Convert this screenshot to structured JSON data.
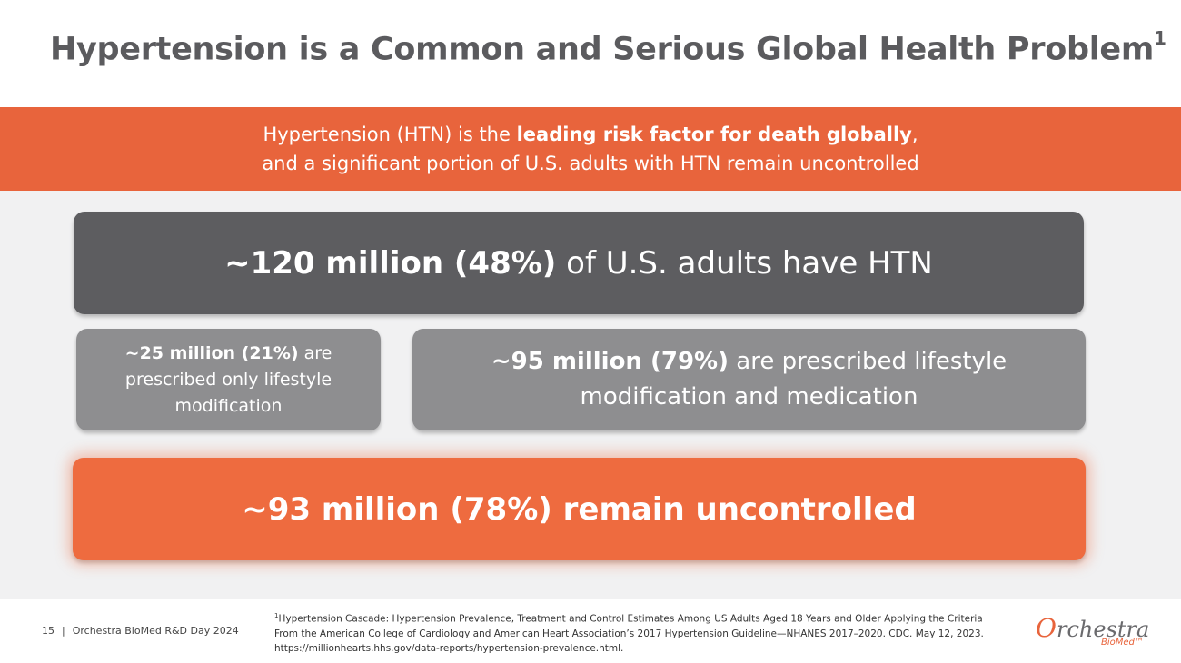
{
  "slide": {
    "title": "Hypertension is a Common and Serious Global Health Problem",
    "title_sup": "1"
  },
  "banner": {
    "line1_pre": "Hypertension (HTN) is the ",
    "line1_bold": "leading risk factor for death globally",
    "line1_post": ",",
    "line2": "and a significant portion of U.S. adults with HTN remain uncontrolled"
  },
  "boxes": {
    "total": {
      "bold": "~120 million (48%)",
      "rest": " of U.S. adults have HTN"
    },
    "lifestyle": {
      "bold": "~25 million (21%)",
      "rest": " are prescribed only lifestyle modification"
    },
    "meds": {
      "bold": "~95 million (79%)",
      "rest": " are prescribed lifestyle modification and medication"
    },
    "uncontrolled": {
      "text": "~93 million (78%) remain uncontrolled"
    }
  },
  "footer": {
    "page_number": "15",
    "separator": "|",
    "event": "Orchestra BioMed R&D Day 2024",
    "footnote_sup": "1",
    "footnote": "Hypertension Cascade: Hypertension Prevalence, Treatment and Control Estimates Among US Adults Aged 18 Years and Older Applying the Criteria From the American College of Cardiology and American Heart Association’s 2017 Hypertension Guideline—NHANES 2017–2020. CDC. May 12, 2023. https://millionhearts.hhs.gov/data-reports/hypertension-prevalence.html."
  },
  "logo": {
    "main_o": "O",
    "main_rest": "rchestra",
    "sub": "BioMed™"
  },
  "colors": {
    "accent": "#e8643c",
    "dark_box": "#5d5d60",
    "mid_box": "#8e8e90",
    "title": "#5b5b5e"
  }
}
